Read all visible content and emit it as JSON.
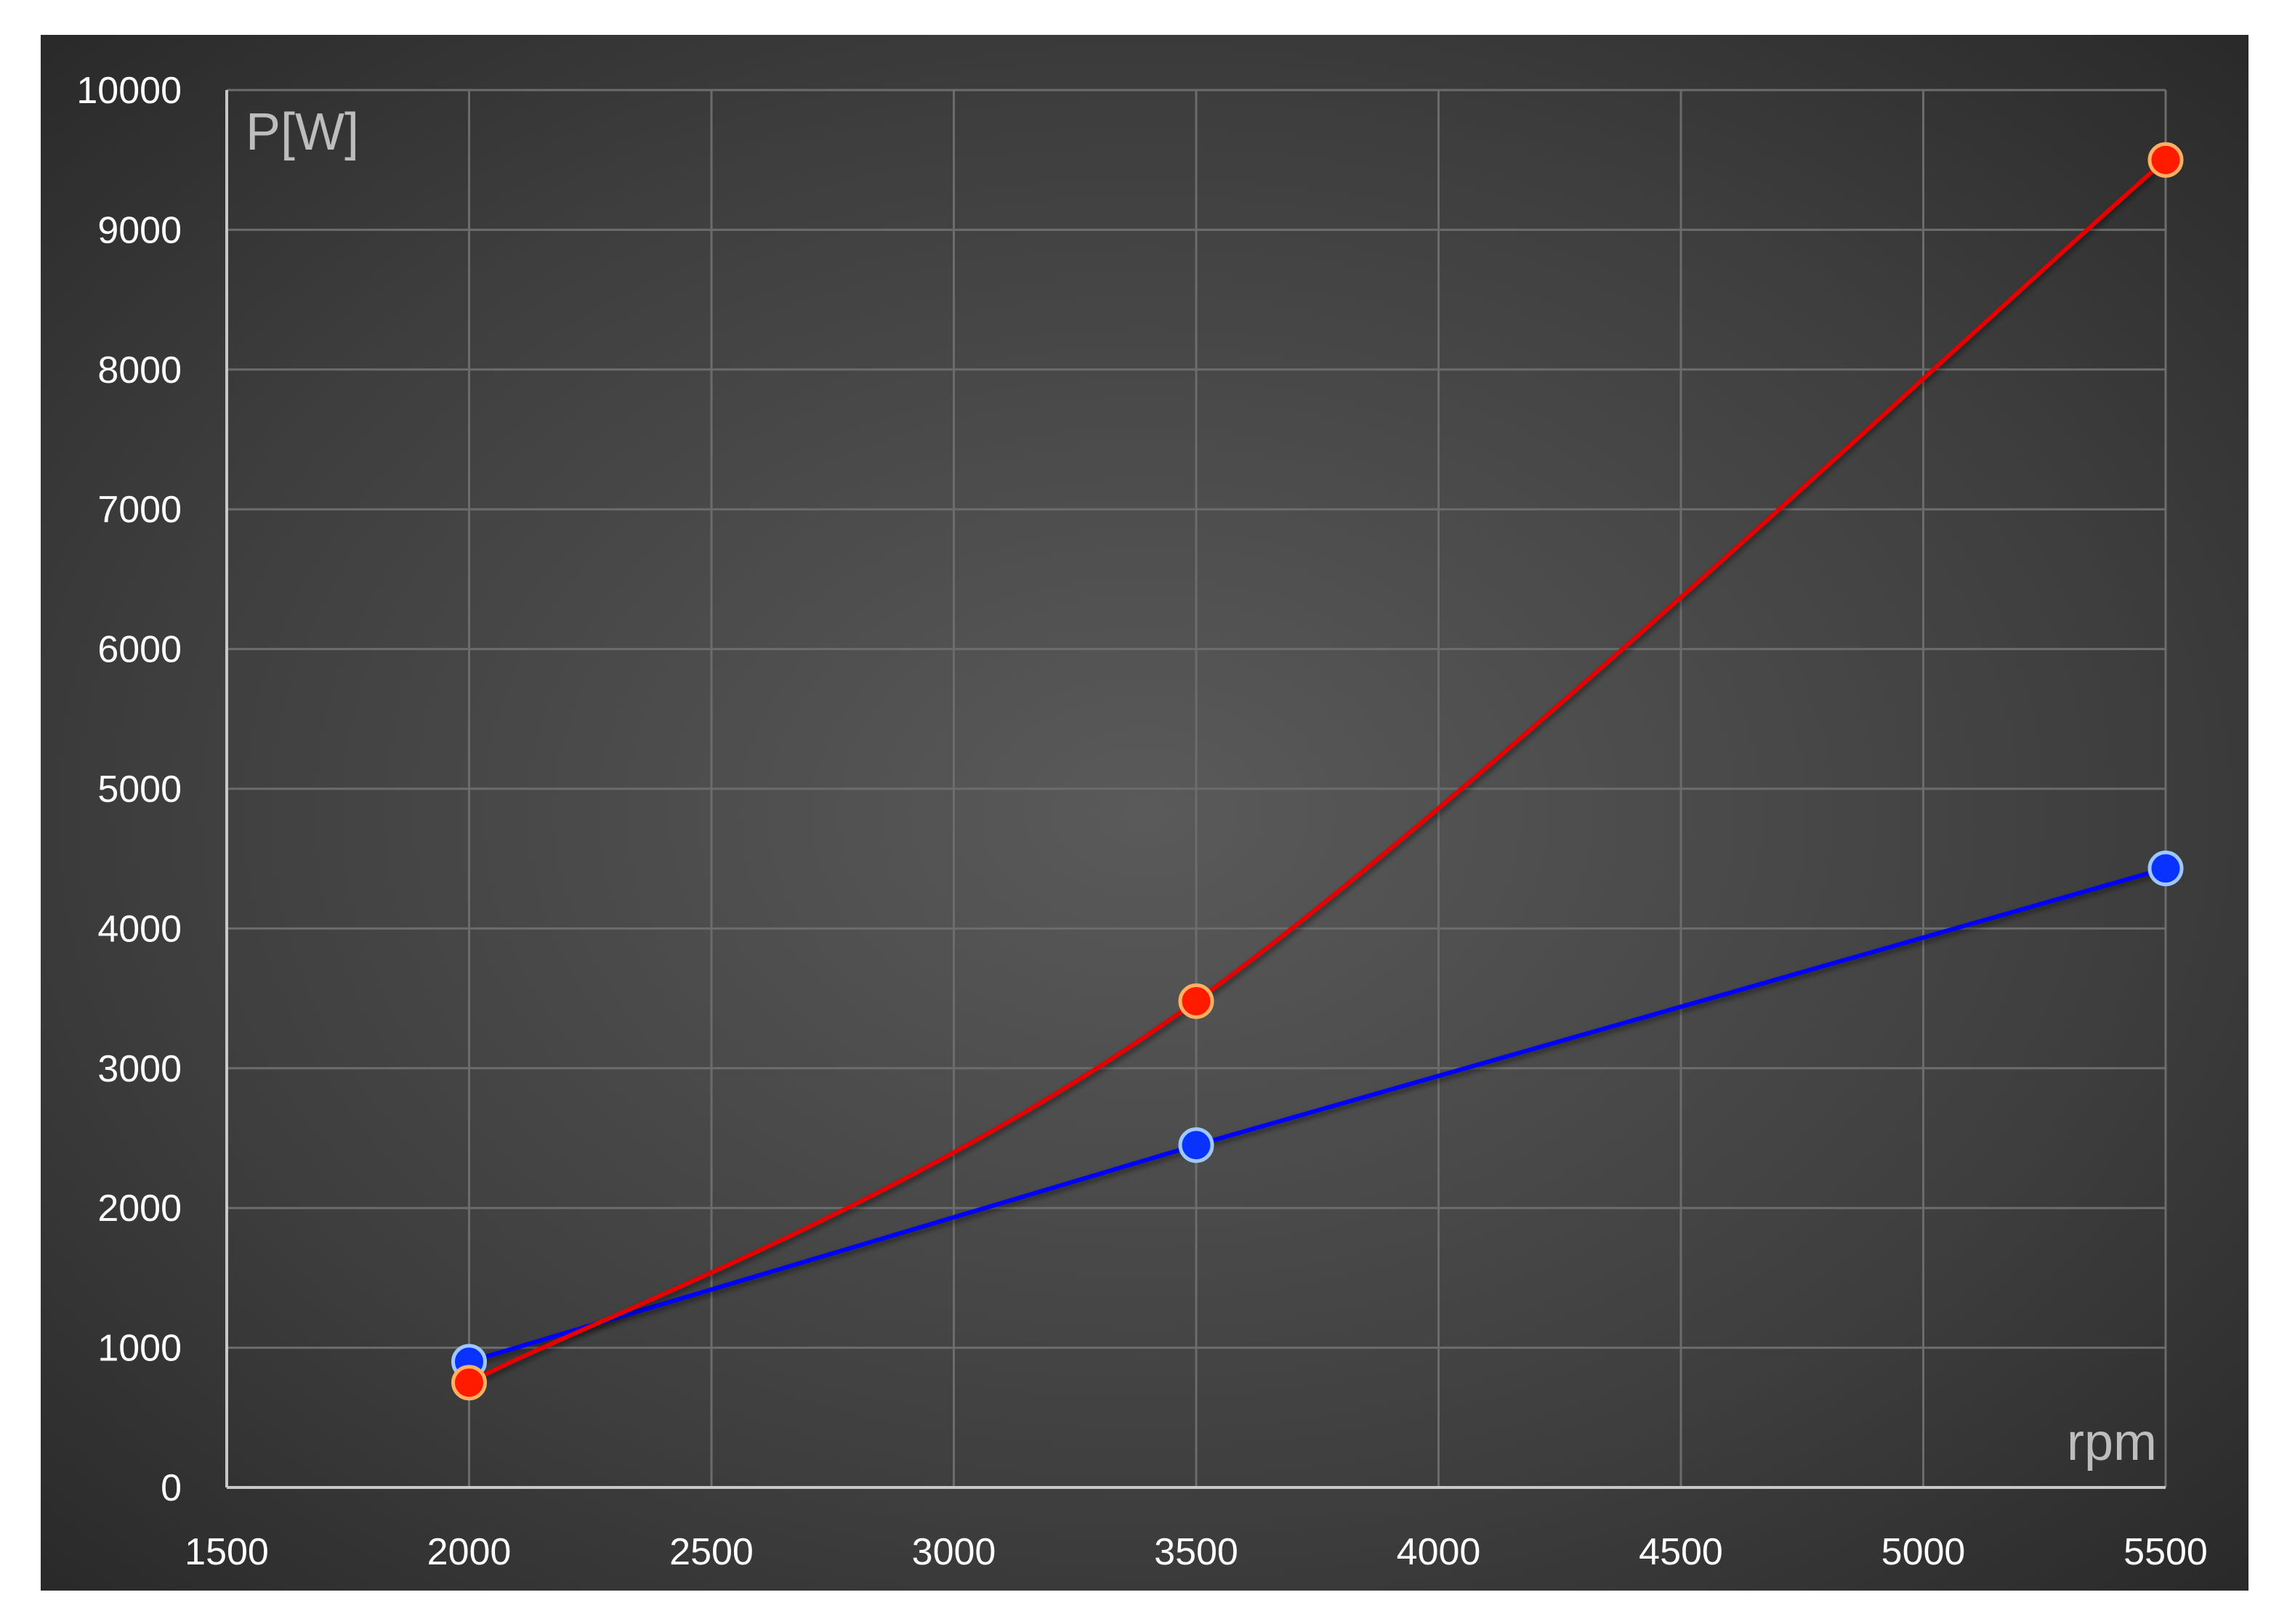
{
  "chart_data": {
    "type": "line",
    "title": "",
    "xlabel": "rpm",
    "ylabel": "P[W]",
    "xlim": [
      1500,
      5500
    ],
    "ylim": [
      0,
      10000
    ],
    "x_ticks": [
      "1500",
      "2000",
      "2500",
      "3000",
      "3500",
      "4000",
      "4500",
      "5000",
      "5500"
    ],
    "y_ticks": [
      "0",
      "1000",
      "2000",
      "3000",
      "4000",
      "5000",
      "6000",
      "7000",
      "8000",
      "9000",
      "10000"
    ],
    "grid": true,
    "background": "dark-gradient",
    "series": [
      {
        "color": "#0000ff",
        "marker_color": "#0a32ff",
        "smooth": false,
        "points": [
          {
            "x": 2000,
            "y": 900
          },
          {
            "x": 3500,
            "y": 2450
          },
          {
            "x": 5500,
            "y": 4430
          }
        ]
      },
      {
        "color": "#e60000",
        "marker_color": "#ff1a00",
        "smooth": true,
        "points": [
          {
            "x": 2000,
            "y": 750
          },
          {
            "x": 3500,
            "y": 3480
          },
          {
            "x": 5500,
            "y": 9500
          }
        ]
      }
    ]
  }
}
